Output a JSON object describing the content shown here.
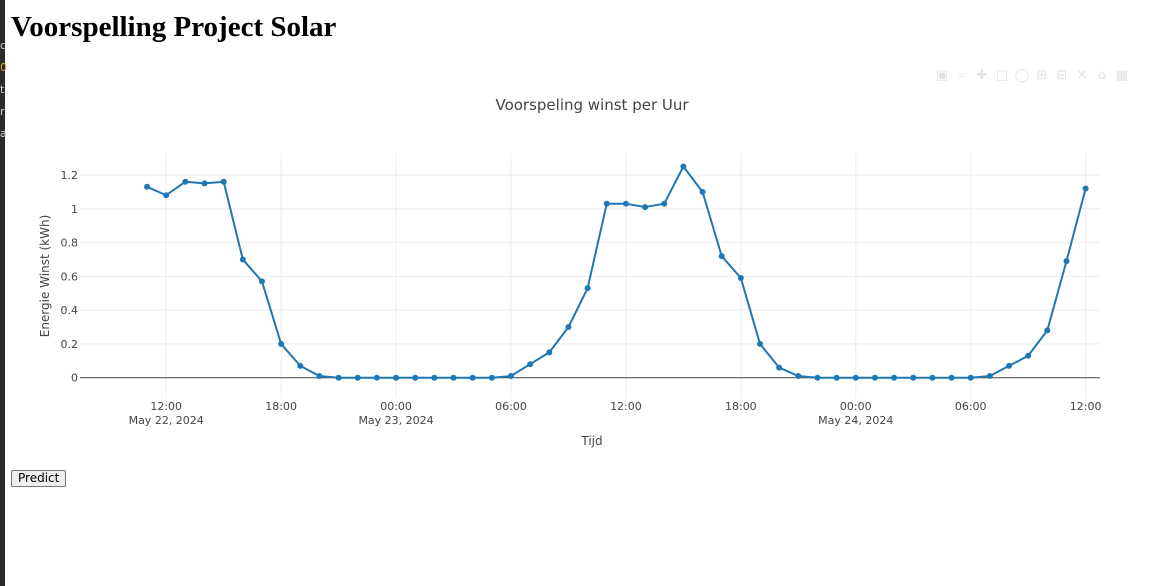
{
  "page": {
    "title": "Voorspelling Project Solar"
  },
  "side_strip": {
    "chars": [
      "c",
      "0",
      "t",
      "r",
      "a"
    ]
  },
  "modebar": {
    "icons": [
      "camera-icon",
      "zoom-icon",
      "pan-icon",
      "box-select-icon",
      "lasso-icon",
      "zoom-in-icon",
      "zoom-out-icon",
      "autoscale-icon",
      "reset-axes-icon",
      "plotly-logo-icon"
    ]
  },
  "controls": {
    "predict_label": "Predict"
  },
  "colors": {
    "line": "#1f77b4",
    "grid": "#eeeeee",
    "zero_line": "#444444"
  },
  "chart_data": {
    "type": "line",
    "title": "Voorspeling winst per Uur",
    "xlabel": "Tijd",
    "ylabel": "Energie Winst (kWh)",
    "x_start": "2024-05-22 11:00",
    "x_step": "1 hour",
    "x_range": [
      "2024-05-22 07:30",
      "2024-05-24 12:45"
    ],
    "ylim": [
      -0.12,
      1.33
    ],
    "grid": true,
    "y_ticks": [
      0,
      0.2,
      0.4,
      0.6,
      0.8,
      1,
      1.2
    ],
    "y_tick_labels": [
      "0",
      "0.2",
      "0.4",
      "0.6",
      "0.8",
      "1",
      "1.2"
    ],
    "x_ticks": [
      {
        "hour": 12,
        "label": "12:00",
        "date": "May 22, 2024"
      },
      {
        "hour": 18,
        "label": "18:00",
        "date": ""
      },
      {
        "hour": 24,
        "label": "00:00",
        "date": "May 23, 2024"
      },
      {
        "hour": 30,
        "label": "06:00",
        "date": ""
      },
      {
        "hour": 36,
        "label": "12:00",
        "date": ""
      },
      {
        "hour": 42,
        "label": "18:00",
        "date": ""
      },
      {
        "hour": 48,
        "label": "00:00",
        "date": "May 24, 2024"
      },
      {
        "hour": 54,
        "label": "06:00",
        "date": ""
      },
      {
        "hour": 60,
        "label": "12:00",
        "date": ""
      }
    ],
    "series": [
      {
        "values": [
          1.13,
          1.08,
          1.16,
          1.15,
          1.16,
          0.7,
          0.57,
          0.2,
          0.07,
          0.01,
          0.0,
          0.0,
          0.0,
          0.0,
          0.0,
          0.0,
          0.0,
          0.0,
          0.0,
          0.01,
          0.08,
          0.15,
          0.3,
          0.53,
          1.03,
          1.03,
          1.01,
          1.03,
          1.25,
          1.1,
          0.72,
          0.59,
          0.2,
          0.06,
          0.01,
          0.0,
          0.0,
          0.0,
          0.0,
          0.0,
          0.0,
          0.0,
          0.0,
          0.0,
          0.01,
          0.07,
          0.13,
          0.28,
          0.69,
          1.12
        ]
      }
    ]
  }
}
